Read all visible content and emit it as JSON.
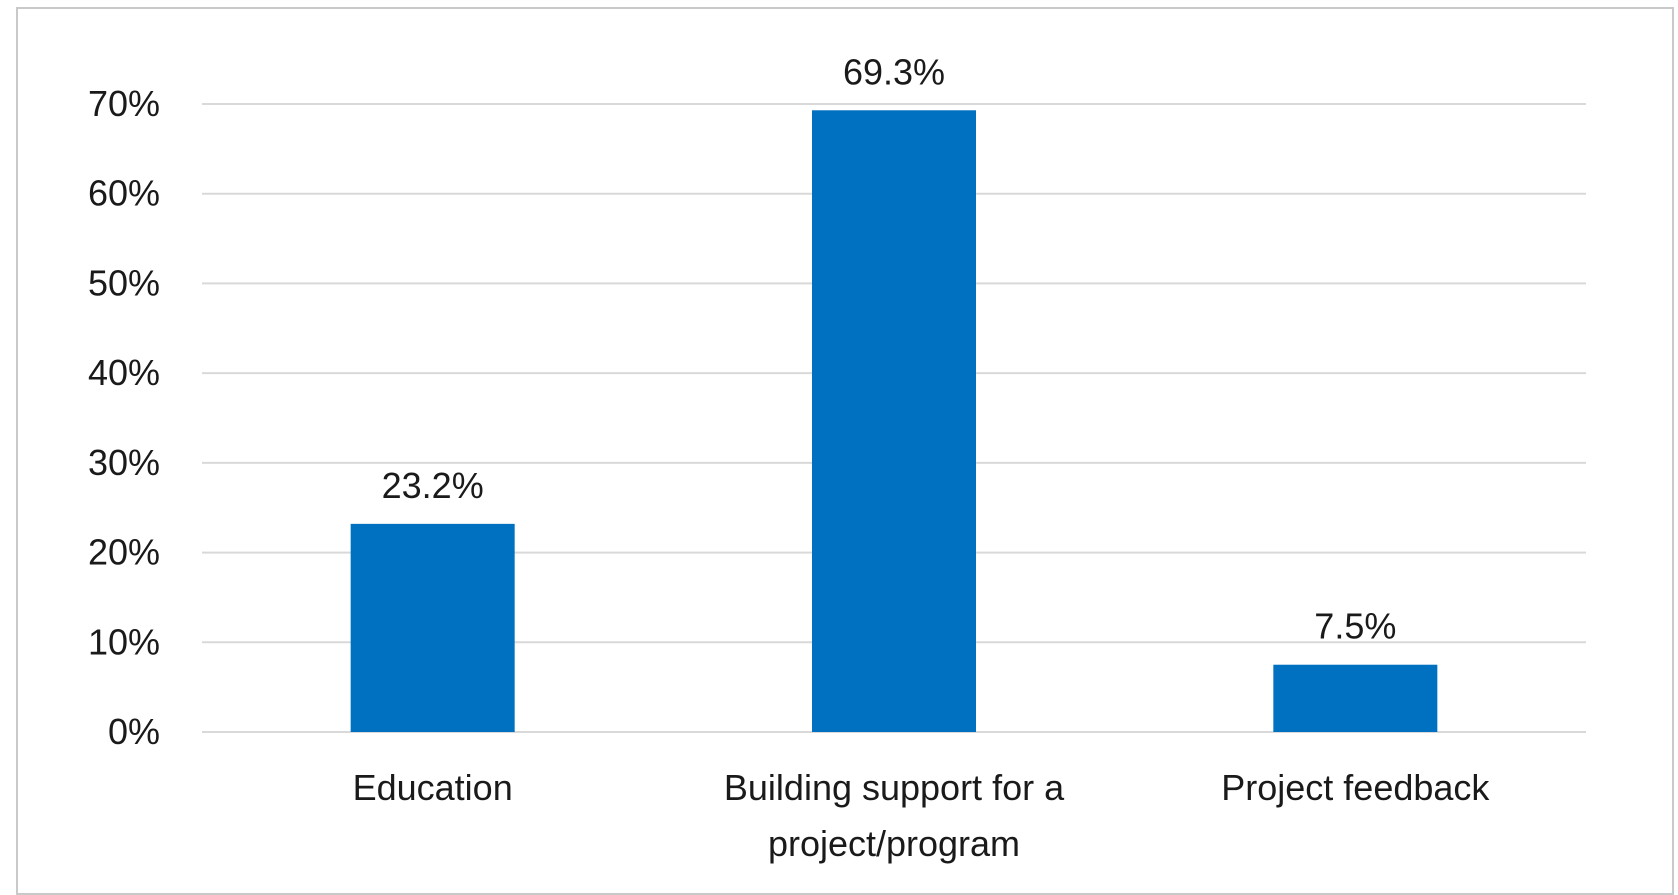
{
  "chart_data": {
    "type": "bar",
    "title": "",
    "xlabel": "",
    "ylabel": "",
    "categories": [
      [
        "Education"
      ],
      [
        "Building support for a",
        "project/program"
      ],
      [
        "Project feedback"
      ]
    ],
    "values": [
      23.2,
      69.3,
      7.5
    ],
    "data_labels": [
      "23.2%",
      "69.3%",
      "7.5%"
    ],
    "ylim": [
      0,
      70
    ],
    "y_ticks": [
      0,
      10,
      20,
      30,
      40,
      50,
      60,
      70
    ],
    "y_tick_labels": [
      "0%",
      "10%",
      "20%",
      "30%",
      "40%",
      "50%",
      "60%",
      "70%"
    ],
    "grid": true,
    "legend": "none",
    "bar_color": "#0070C0",
    "grid_color": "#d9d9d9"
  }
}
